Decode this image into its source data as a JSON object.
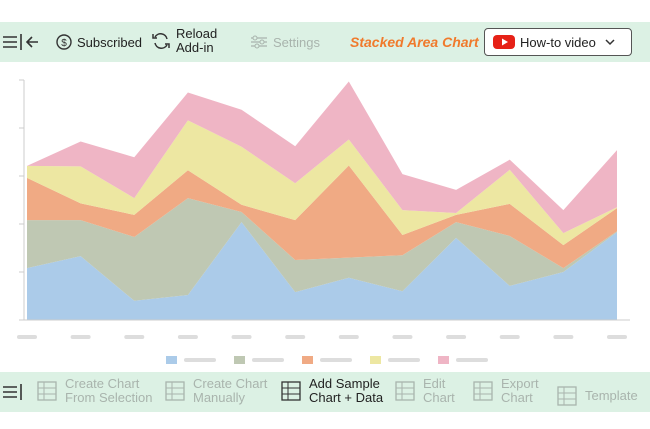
{
  "toolbar": {
    "subscribed": "Subscribed",
    "reload": [
      "Reload",
      "Add-in"
    ],
    "settings": "Settings",
    "chart_name": "Stacked Area Chart",
    "video": "How-to video"
  },
  "actions": [
    [
      "Create Chart",
      "From Selection"
    ],
    [
      "Create Chart",
      "Manually"
    ],
    [
      "Add Sample",
      "Chart + Data"
    ],
    [
      "Edit",
      "Chart"
    ],
    [
      "Export",
      "Chart"
    ],
    [
      "Template"
    ]
  ],
  "chart_data": {
    "type": "stacked-area",
    "categories": [
      null,
      null,
      null,
      null,
      null,
      null,
      null,
      null,
      null,
      null,
      null,
      null
    ],
    "ylim": [
      0,
      5
    ],
    "yticks": [
      0,
      1,
      2,
      3,
      4,
      5
    ],
    "series": [
      {
        "color": "#abcbe9",
        "values": [
          1.08,
          1.33,
          0.4,
          0.52,
          2.04,
          0.58,
          0.88,
          0.6,
          1.71,
          0.71,
          1.0,
          1.83
        ]
      },
      {
        "color": "#bfc8b3",
        "values": [
          1.0,
          0.75,
          1.33,
          2.02,
          0.21,
          0.67,
          0.42,
          0.75,
          0.33,
          1.04,
          0.08,
          0.02
        ]
      },
      {
        "color": "#f0aa84",
        "values": [
          0.88,
          0.35,
          0.46,
          0.58,
          0.15,
          0.83,
          1.92,
          0.42,
          0.15,
          0.67,
          0.48,
          0.48
        ]
      },
      {
        "color": "#ede7a2",
        "values": [
          0.25,
          0.77,
          0.35,
          1.04,
          1.21,
          0.77,
          0.54,
          0.52,
          0.04,
          0.71,
          0.25,
          0.02
        ]
      },
      {
        "color": "#efb5c5",
        "values": [
          0,
          0.52,
          0.85,
          0.58,
          0.77,
          0.77,
          1.21,
          0.75,
          0.48,
          0.21,
          0.48,
          1.19
        ]
      }
    ]
  }
}
